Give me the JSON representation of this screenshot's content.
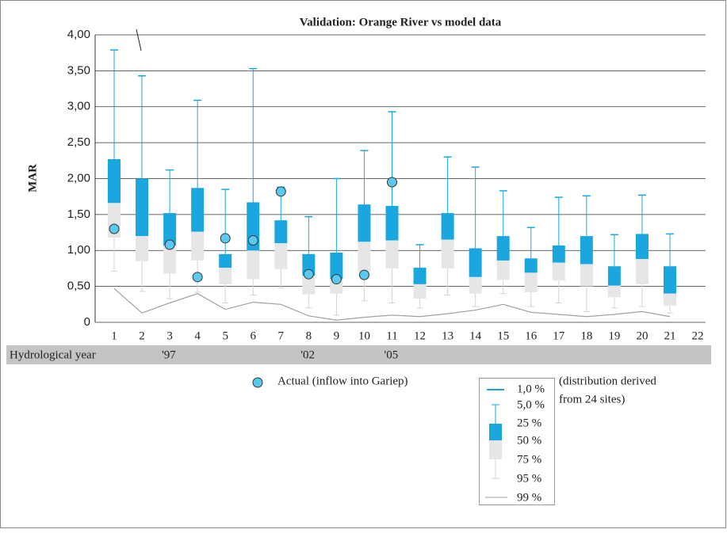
{
  "chart_data": {
    "type": "box",
    "title": "Validation: Orange River vs model data",
    "y_label": "MAR",
    "categories": [
      "1",
      "2",
      "3",
      "4",
      "5",
      "6",
      "7",
      "8",
      "9",
      "10",
      "11",
      "12",
      "13",
      "14",
      "15",
      "16",
      "17",
      "18",
      "19",
      "20",
      "21",
      "22"
    ],
    "band_label": "Hydrological year",
    "band_years": [
      null,
      null,
      "'97",
      null,
      null,
      null,
      null,
      "'02",
      null,
      null,
      "'05",
      null,
      null,
      null,
      null,
      null,
      null,
      null,
      null,
      null,
      null,
      null
    ],
    "ylim": [
      0,
      4
    ],
    "yticks": [
      0,
      {
        "value": 0.5,
        "label": "0,50"
      },
      {
        "value": 1,
        "label": "1,00"
      },
      {
        "value": 1.5,
        "label": "1,50"
      },
      {
        "value": 2,
        "label": "2,00"
      },
      {
        "value": 2.5,
        "label": "2,50"
      },
      {
        "value": 3,
        "label": "3,00"
      },
      {
        "value": 3.5,
        "label": "3,50"
      },
      {
        "value": 4,
        "label": "4,00"
      }
    ],
    "grid": true,
    "series": [
      {
        "name": "1,0 %",
        "color": "#1aa7e0",
        "values": [
          3.79,
          3.43,
          2.12,
          3.09,
          1.85,
          3.53,
          1.88,
          1.47,
          2.0,
          2.39,
          2.93,
          1.08,
          2.3,
          2.16,
          1.83,
          1.32,
          1.74,
          1.76,
          1.22,
          1.77,
          1.23,
          null
        ]
      },
      {
        "name": "5,0 %",
        "color": "#1aa7e0",
        "values": [
          3.79,
          3.43,
          2.12,
          3.09,
          1.85,
          3.53,
          1.88,
          1.47,
          2.0,
          2.39,
          2.93,
          1.08,
          2.3,
          2.16,
          1.83,
          1.32,
          1.74,
          1.76,
          1.22,
          1.77,
          1.23,
          null
        ]
      },
      {
        "name": "25 %",
        "color": "#1aa7e0",
        "values": [
          2.27,
          2.0,
          1.52,
          1.87,
          0.95,
          1.67,
          1.42,
          0.95,
          0.97,
          1.64,
          1.62,
          0.76,
          1.52,
          1.03,
          1.2,
          0.89,
          1.07,
          1.2,
          0.78,
          1.23,
          0.78,
          null
        ]
      },
      {
        "name": "50 %",
        "color": "#e6e6e6",
        "values": [
          1.66,
          1.2,
          1.07,
          1.26,
          0.76,
          1.0,
          1.1,
          0.65,
          0.6,
          1.12,
          1.14,
          0.53,
          1.15,
          0.63,
          0.86,
          0.69,
          0.83,
          0.81,
          0.51,
          0.88,
          0.4,
          null
        ]
      },
      {
        "name": "75 %",
        "color": "#e6e6e6",
        "values": [
          1.18,
          0.85,
          0.68,
          0.86,
          0.53,
          0.6,
          0.74,
          0.39,
          0.4,
          0.7,
          0.75,
          0.33,
          0.75,
          0.4,
          0.59,
          0.42,
          0.58,
          0.5,
          0.35,
          0.53,
          0.23,
          null
        ]
      },
      {
        "name": "95 %",
        "color": "#d4d4d4",
        "values": [
          0.71,
          0.43,
          0.33,
          0.42,
          0.27,
          0.38,
          0.48,
          0.2,
          0.1,
          0.3,
          0.27,
          0.2,
          0.38,
          0.22,
          0.4,
          0.22,
          0.27,
          0.15,
          0.2,
          0.22,
          0.13,
          null
        ]
      },
      {
        "name": "99 %",
        "color": "#a0a0a0",
        "values": [
          0.47,
          0.13,
          0.27,
          0.4,
          0.18,
          0.28,
          0.25,
          0.09,
          0.03,
          0.07,
          0.1,
          0.08,
          0.12,
          0.17,
          0.25,
          0.14,
          0.11,
          0.08,
          0.11,
          0.15,
          0.08,
          null
        ]
      }
    ],
    "actual": {
      "name": "Actual (inflow into Gariep)",
      "color": "#5bc8f0",
      "values": [
        1.3,
        null,
        1.08,
        0.63,
        1.17,
        1.14,
        1.82,
        0.67,
        0.6,
        0.66,
        1.95,
        null,
        null,
        null,
        null,
        null,
        null,
        null,
        null,
        null,
        null,
        null
      ]
    },
    "legend_note": [
      "(distribution derived",
      "from 24 sites)"
    ]
  }
}
